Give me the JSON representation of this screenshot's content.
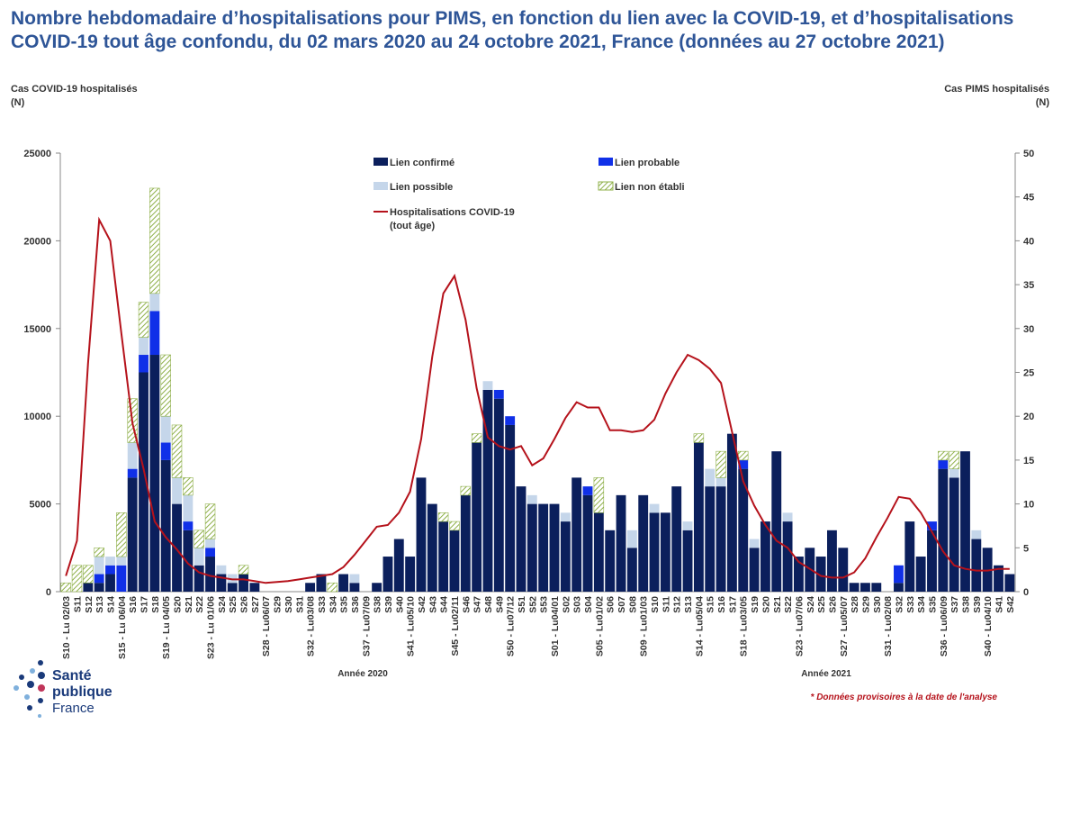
{
  "chart_data": {
    "type": "bar",
    "title": "Nombre hebdomadaire d’hospitalisations pour PIMS, en fonction du lien avec la COVID-19, et d’hospitalisations COVID-19 tout âge confondu, du 02 mars 2020 au 24 octobre 2021, France (données au 27 octobre 2021)",
    "ylabel": "Cas COVID-19 hospitalisés\n(N)",
    "y2label": "Cas PIMS hospitalisés\n(N)",
    "year_labels": [
      "Année 2020",
      "Année 2021"
    ],
    "note": "* Données provisoires à la date de l'analyse",
    "logo": [
      "Santé",
      "publique",
      "France"
    ],
    "categories": [
      "S10 - Lu 02/03",
      "S11",
      "S12",
      "S13",
      "S14",
      "S15 - Lu 06/04",
      "S16",
      "S17",
      "S18",
      "S19 - Lu 04/05",
      "S20",
      "S21",
      "S22",
      "S23 - Lu 01/06",
      "S24",
      "S25",
      "S26",
      "S27",
      "S28 - Lu06/07",
      "S29",
      "S30",
      "S31",
      "S32 - Lu03/08",
      "S33",
      "S34",
      "S35",
      "S36",
      "S37 - Lu07/09",
      "S38",
      "S39",
      "S40",
      "S41 - Lu05/10",
      "S42",
      "S43",
      "S44",
      "S45 - Lu02/11",
      "S46",
      "S47",
      "S48",
      "S49",
      "S50 - Lu07/12",
      "S51",
      "S52",
      "S53",
      "S01 - Lu04/01",
      "S02",
      "S03",
      "S04",
      "S05 - Lu01/02",
      "S06",
      "S07",
      "S08",
      "S09 - Lu01/03",
      "S10",
      "S11",
      "S12",
      "S13",
      "S14 - Lu05/04",
      "S15",
      "S16",
      "S17",
      "S18 - Lu03/05",
      "S19",
      "S20",
      "S21",
      "S22",
      "S23 - Lu07/06",
      "S24",
      "S25",
      "S26",
      "S27 - Lu05/07",
      "S28",
      "S29",
      "S30",
      "S31 - Lu02/08",
      "S32",
      "S33",
      "S34",
      "S35",
      "S36 - Lu06/09",
      "S37",
      "S38",
      "S39",
      "S40 - Lu04/10",
      "S41",
      "S42"
    ],
    "series": [
      {
        "name": "Lien confirmé",
        "color": "#0b1f5c",
        "axis": "y2",
        "values": [
          0,
          0,
          1,
          1,
          2,
          0,
          13,
          25,
          27,
          15,
          10,
          7,
          3,
          4,
          2,
          1,
          2,
          1,
          0,
          0,
          0,
          0,
          1,
          2,
          0,
          2,
          1,
          0,
          1,
          4,
          6,
          4,
          13,
          10,
          8,
          7,
          11,
          17,
          23,
          22,
          19,
          12,
          10,
          10,
          10,
          8,
          13,
          11,
          9,
          7,
          11,
          5,
          11,
          9,
          9,
          12,
          7,
          17,
          12,
          12,
          18,
          14,
          5,
          8,
          16,
          8,
          4,
          5,
          4,
          7,
          5,
          1,
          1,
          1,
          0,
          1,
          8,
          4,
          7,
          14,
          13,
          16,
          6,
          5,
          3,
          2
        ]
      },
      {
        "name": "Lien probable",
        "color": "#1030e8",
        "axis": "y2",
        "values": [
          0,
          0,
          0,
          1,
          1,
          3,
          1,
          2,
          5,
          2,
          0,
          1,
          0,
          1,
          0,
          0,
          0,
          0,
          0,
          0,
          0,
          0,
          0,
          0,
          0,
          0,
          0,
          0,
          0,
          0,
          0,
          0,
          0,
          0,
          0,
          0,
          0,
          0,
          0,
          1,
          1,
          0,
          0,
          0,
          0,
          0,
          0,
          1,
          0,
          0,
          0,
          0,
          0,
          0,
          0,
          0,
          0,
          0,
          0,
          0,
          0,
          1,
          0,
          0,
          0,
          0,
          0,
          0,
          0,
          0,
          0,
          0,
          0,
          0,
          0,
          2,
          0,
          0,
          1,
          1,
          0,
          0,
          0,
          0,
          0,
          0
        ]
      },
      {
        "name": "Lien possible",
        "color": "#c5d6ea",
        "axis": "y2",
        "values": [
          0,
          0,
          0,
          2,
          1,
          1,
          3,
          2,
          2,
          3,
          3,
          3,
          2,
          1,
          1,
          1,
          0,
          0,
          0,
          0,
          0,
          0,
          0,
          0,
          0,
          0,
          1,
          0,
          0,
          0,
          0,
          0,
          0,
          0,
          0,
          0,
          0,
          0,
          1,
          0,
          0,
          0,
          1,
          0,
          0,
          1,
          0,
          0,
          0,
          0,
          0,
          2,
          0,
          1,
          0,
          0,
          1,
          0,
          2,
          1,
          0,
          0,
          1,
          0,
          0,
          1,
          0,
          0,
          0,
          0,
          0,
          0,
          0,
          0,
          0,
          0,
          0,
          0,
          0,
          0,
          1,
          0,
          1,
          0,
          0,
          0
        ]
      },
      {
        "name": "Lien non établi",
        "color": "#8fb04a",
        "axis": "y2",
        "values": [
          1,
          3,
          2,
          1,
          0,
          5,
          5,
          4,
          12,
          7,
          6,
          2,
          2,
          4,
          0,
          0,
          1,
          0,
          0,
          0,
          0,
          0,
          0,
          0,
          1,
          0,
          0,
          0,
          0,
          0,
          0,
          0,
          0,
          0,
          1,
          1,
          1,
          1,
          0,
          0,
          0,
          0,
          0,
          0,
          0,
          0,
          0,
          0,
          4,
          0,
          0,
          0,
          0,
          0,
          0,
          0,
          0,
          1,
          0,
          3,
          0,
          1,
          0,
          0,
          0,
          0,
          0,
          0,
          0,
          0,
          0,
          0,
          0,
          0,
          0,
          0,
          0,
          0,
          0,
          1,
          2,
          0,
          0,
          0,
          0,
          0
        ]
      }
    ],
    "line": {
      "name": "Hospitalisations COVID-19\n(tout âge)",
      "color": "#b5121b",
      "values": [
        900,
        2900,
        13000,
        21200,
        20000,
        14700,
        9600,
        7000,
        4000,
        3100,
        2400,
        1600,
        1100,
        900,
        800,
        700,
        700,
        600,
        500,
        550,
        600,
        700,
        800,
        900,
        1000,
        1400,
        2100,
        2900,
        3700,
        3800,
        4500,
        5700,
        8700,
        13400,
        17000,
        18000,
        15500,
        11600,
        8800,
        8300,
        8100,
        8300,
        7200,
        7600,
        8700,
        9900,
        10800,
        10500,
        10500,
        9200,
        9200,
        9100,
        9200,
        9800,
        11300,
        12500,
        13500,
        13200,
        12700,
        11900,
        9100,
        6300,
        4900,
        3800,
        2900,
        2500,
        1700,
        1300,
        900,
        800,
        800,
        1100,
        1900,
        3100,
        4200,
        5400,
        5300,
        4500,
        3400,
        2300,
        1500,
        1300,
        1200,
        1200,
        1300,
        1300
      ]
    },
    "ylim": [
      0,
      25000
    ],
    "yticks": [
      0,
      5000,
      10000,
      15000,
      20000,
      25000
    ],
    "y2lim": [
      0,
      50
    ],
    "y2ticks": [
      0,
      5,
      10,
      15,
      20,
      25,
      30,
      35,
      40,
      45,
      50
    ],
    "grid": false
  }
}
